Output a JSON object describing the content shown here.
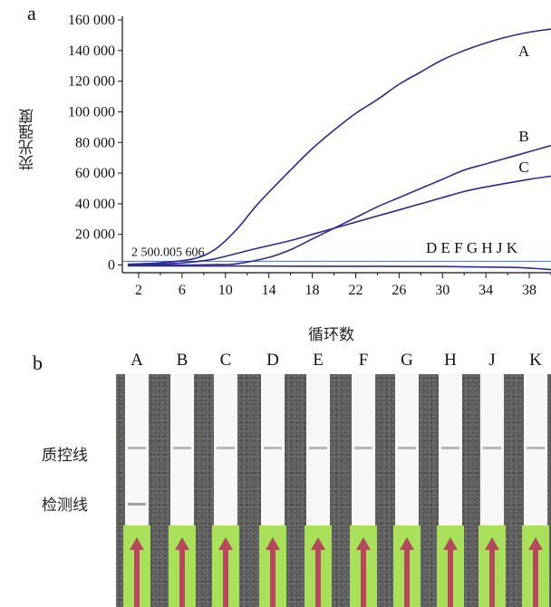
{
  "panel_a_letter": "a",
  "panel_b_letter": "b",
  "chart_data": {
    "type": "line",
    "xlabel": "循环数",
    "ylabel": "荧光强度",
    "x_ticks": [
      2,
      6,
      10,
      14,
      18,
      22,
      26,
      30,
      34,
      38
    ],
    "y_ticks": [
      0,
      20000,
      40000,
      60000,
      80000,
      100000,
      120000,
      140000,
      160000
    ],
    "y_tick_labels": [
      "0",
      "20 000",
      "40 000",
      "60 000",
      "80 000",
      "100 000",
      "120 000",
      "140 000",
      "160 000"
    ],
    "xlim": [
      0.5,
      40
    ],
    "ylim": [
      -5000,
      160000
    ],
    "threshold_label": "2 500.005 606",
    "threshold_value": 2500,
    "line_color": "#2e2a8f",
    "series": [
      {
        "name": "A",
        "x": [
          1,
          4,
          7,
          9,
          11,
          13,
          16,
          18,
          20,
          22,
          24,
          26,
          28,
          30,
          32,
          34,
          36,
          38,
          40
        ],
        "y": [
          500,
          1500,
          4000,
          10000,
          23000,
          40000,
          62000,
          76000,
          88000,
          99000,
          108000,
          118000,
          126000,
          134000,
          140000,
          145000,
          149000,
          152000,
          154000
        ]
      },
      {
        "name": "B",
        "x": [
          1,
          6,
          9,
          11,
          14,
          16,
          18,
          20,
          22,
          24,
          26,
          28,
          30,
          32,
          34,
          36,
          38,
          40
        ],
        "y": [
          0,
          0,
          300,
          800,
          5000,
          10000,
          17000,
          24000,
          31000,
          38000,
          44000,
          50000,
          56000,
          62000,
          66000,
          70000,
          74000,
          78000
        ]
      },
      {
        "name": "C",
        "x": [
          1,
          5,
          7,
          9,
          11,
          13,
          16,
          18,
          20,
          22,
          24,
          26,
          28,
          30,
          32,
          34,
          36,
          38,
          40
        ],
        "y": [
          500,
          1000,
          2000,
          4000,
          7500,
          11000,
          16000,
          20000,
          24000,
          28000,
          32000,
          36000,
          40000,
          44000,
          48000,
          51000,
          53500,
          56000,
          58000
        ]
      },
      {
        "name": "D E F  G H  J K",
        "x": [
          1,
          10,
          20,
          30,
          36,
          38,
          40
        ],
        "y": [
          -500,
          -600,
          -800,
          -1000,
          -1500,
          -2000,
          -3000
        ]
      }
    ],
    "series_labels": [
      "A",
      "B",
      "C",
      "D E F  G H  J K"
    ]
  },
  "strips": {
    "lanes": [
      "A",
      "B",
      "C",
      "D",
      "E",
      "F",
      "G",
      "H",
      "J",
      "K"
    ],
    "control_line_label": "质控线",
    "test_line_label": "检测线",
    "test_line_present": [
      true,
      false,
      false,
      false,
      false,
      false,
      false,
      false,
      false,
      false
    ]
  }
}
